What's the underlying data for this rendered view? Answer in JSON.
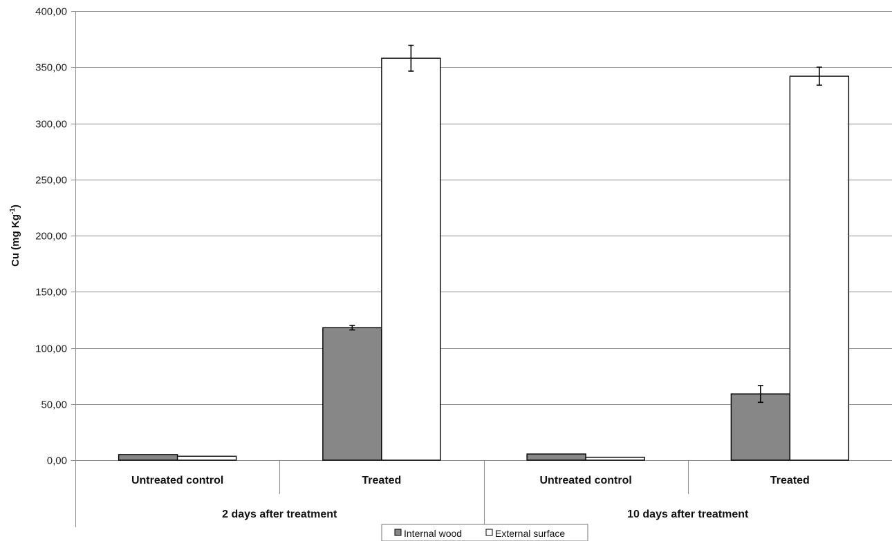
{
  "chart_data": {
    "type": "bar",
    "title": "",
    "xlabel": "",
    "ylabel": {
      "main": "Cu (mg Kg",
      "sup": "-1",
      "close": ")"
    },
    "ylim": [
      0,
      400
    ],
    "ytick_step": 50,
    "ytick_labels": [
      "0,00",
      "50,00",
      "100,00",
      "150,00",
      "200,00",
      "250,00",
      "300,00",
      "350,00",
      "400,00"
    ],
    "grid": true,
    "groups": [
      {
        "label": "2 days after treatment",
        "categories": [
          "Untreated control",
          "Treated"
        ]
      },
      {
        "label": "10 days after treatment",
        "categories": [
          "Untreated control",
          "Treated"
        ]
      }
    ],
    "categories": [
      "Untreated control",
      "Treated",
      "Untreated control",
      "Treated"
    ],
    "series": [
      {
        "name": "Internal wood",
        "color": "#878787",
        "values": [
          5,
          118,
          5.5,
          59
        ],
        "errors": [
          null,
          2,
          null,
          7.5
        ]
      },
      {
        "name": "External surface",
        "color": "#ffffff",
        "values": [
          3.5,
          358,
          2.5,
          342
        ],
        "errors": [
          null,
          11.5,
          null,
          8
        ]
      }
    ],
    "legend": {
      "position": "bottom"
    }
  }
}
